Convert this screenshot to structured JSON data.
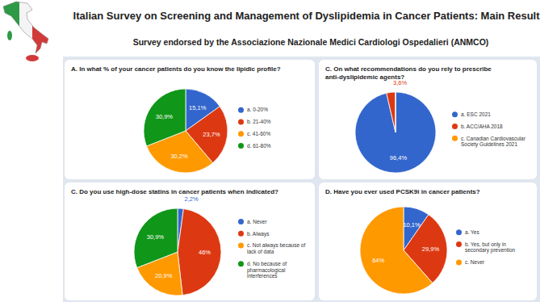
{
  "title": "Italian Survey on Screening and Management of Dyslipidemia in Cancer Patients: Main Results.",
  "subtitle": "Survey endorsed by the Associazione Nazionale Medici Cardiologi Ospedalieri (ANMCO)",
  "chart_data": [
    {
      "type": "pie",
      "title": "A. In what % of your cancer patients do you know the lipidic profile?",
      "categories": [
        "a. 0-20%",
        "b. 21-40%",
        "c. 41-60%",
        "d. 61-80%"
      ],
      "values": [
        15.1,
        23.7,
        30.2,
        30.9
      ],
      "value_labels": [
        "15,1%",
        "23,7%",
        "30,2%",
        "30,9%"
      ],
      "colors": [
        "#3366cc",
        "#dc3912",
        "#ff9900",
        "#109618"
      ],
      "data_labels": true,
      "legend": "right"
    },
    {
      "type": "pie",
      "title": "C. On what recommendations do you rely to prescribe anti-dyslipidemic agents?",
      "categories": [
        "a. ESC 2021",
        "b. ACC/AHA 2018",
        "c. Canadian Cardiovascular Society Guidelines 2021"
      ],
      "values": [
        96.4,
        3.6,
        0
      ],
      "value_labels": [
        "96,4%",
        "3,6%",
        null
      ],
      "colors": [
        "#3366cc",
        "#dc3912",
        "#ff9900"
      ],
      "data_labels": true,
      "legend": "right"
    },
    {
      "type": "pie",
      "title": "C. Do you use high-dose statins in cancer patients when indicated?",
      "categories": [
        "a. Never",
        "b. Always",
        "c. Not always because of lack of data",
        "d. No because of pharmacological interferences"
      ],
      "values": [
        2.2,
        46,
        20.9,
        30.9
      ],
      "value_labels": [
        "2,2%",
        "46%",
        "20,9%",
        "30,9%"
      ],
      "colors": [
        "#3366cc",
        "#dc3912",
        "#ff9900",
        "#109618"
      ],
      "data_labels": true,
      "legend": "right"
    },
    {
      "type": "pie",
      "title": "D. Have you ever used PCSK9i in cancer patients?",
      "categories": [
        "a. Yes",
        "b. Yes, but only in secondary prevention",
        "c. Never"
      ],
      "values": [
        10.1,
        29.9,
        64
      ],
      "value_labels": [
        "10,1%",
        "29,9%",
        "64%"
      ],
      "colors": [
        "#3366cc",
        "#dc3912",
        "#ff9900"
      ],
      "data_labels": true,
      "legend": "right"
    }
  ]
}
